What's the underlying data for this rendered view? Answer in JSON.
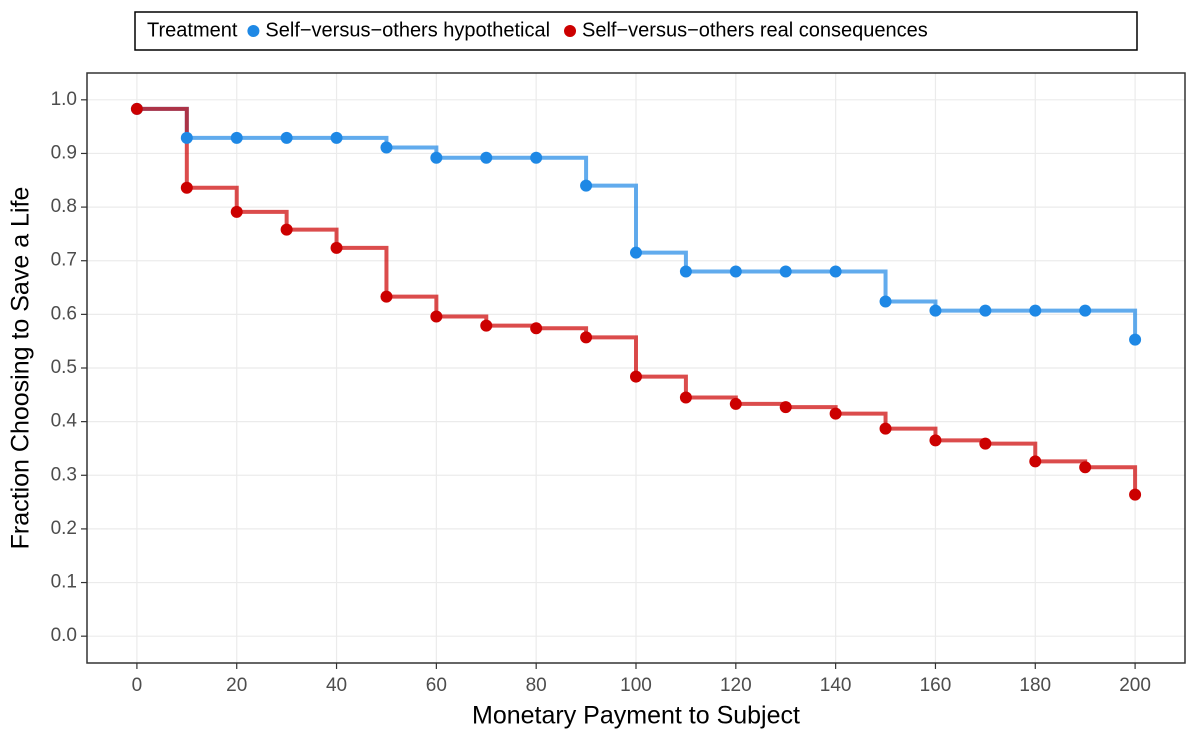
{
  "chart_data": {
    "type": "step",
    "x_label": "Monetary Payment to Subject",
    "y_label": "Fraction Choosing to Save a Life",
    "legend_title": "Treatment",
    "legend_position": "top",
    "x": [
      0,
      10,
      20,
      30,
      40,
      50,
      60,
      70,
      80,
      90,
      100,
      110,
      120,
      130,
      140,
      150,
      160,
      170,
      180,
      190,
      200
    ],
    "series": [
      {
        "name": "Self−versus−others hypothetical",
        "color": "#1e88e5",
        "values": [
          0.983,
          0.929,
          0.929,
          0.929,
          0.929,
          0.911,
          0.892,
          0.892,
          0.892,
          0.84,
          0.715,
          0.68,
          0.68,
          0.68,
          0.68,
          0.624,
          0.607,
          0.607,
          0.607,
          0.607,
          0.553
        ]
      },
      {
        "name": "Self−versus−others real consequences",
        "color": "#cc0000",
        "values": [
          0.983,
          0.836,
          0.791,
          0.758,
          0.724,
          0.633,
          0.596,
          0.579,
          0.574,
          0.557,
          0.484,
          0.445,
          0.433,
          0.427,
          0.415,
          0.387,
          0.365,
          0.359,
          0.326,
          0.315,
          0.264
        ]
      }
    ],
    "xlim": [
      -10,
      210
    ],
    "ylim": [
      -0.05,
      1.05
    ],
    "xticks": [
      0,
      20,
      40,
      60,
      80,
      100,
      120,
      140,
      160,
      180,
      200
    ],
    "yticks": [
      {
        "value": 0,
        "label": "0.0"
      },
      0.1,
      0.2,
      0.3,
      0.4,
      0.5,
      0.6,
      0.7,
      0.8,
      0.9,
      {
        "value": 1,
        "label": "1.0"
      }
    ],
    "grid": true
  }
}
